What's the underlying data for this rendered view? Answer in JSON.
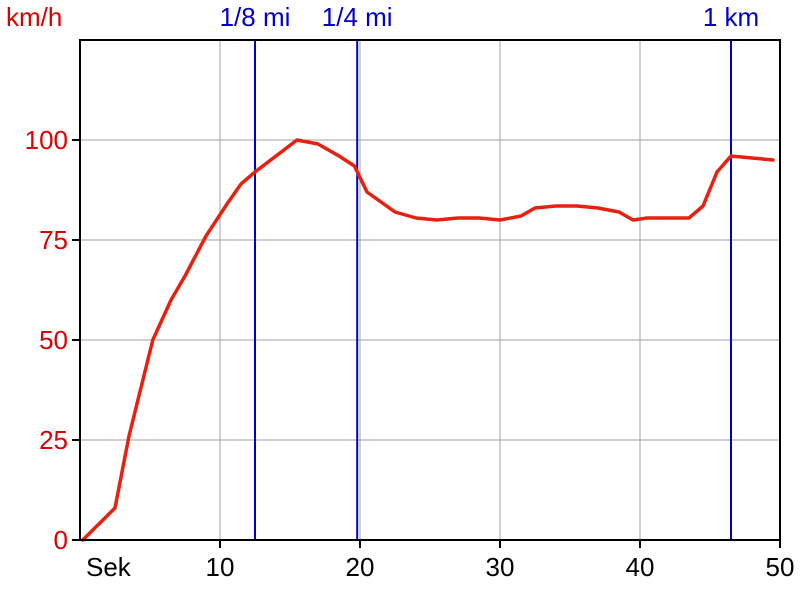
{
  "chart_data": {
    "type": "line",
    "title": "",
    "ylabel": "km/h",
    "xlabel": "Sek",
    "xlim": [
      0,
      50
    ],
    "ylim": [
      0,
      125
    ],
    "x_ticks": [
      10,
      20,
      30,
      40,
      50
    ],
    "y_ticks": [
      0,
      25,
      50,
      75,
      100
    ],
    "grid": true,
    "colors": {
      "series": "#e82010",
      "y_axis_text": "#dd0000",
      "x_axis_text": "#000000",
      "markers": "#0000cc",
      "grid": "#a0a0a0",
      "frame": "#000000"
    },
    "markers": [
      {
        "label": "1/8 mi",
        "x": 12.5
      },
      {
        "label": "1/4 mi",
        "x": 19.8
      },
      {
        "label": "1 km",
        "x": 46.5
      }
    ],
    "series": [
      {
        "x": [
          0.2,
          2.5,
          3.5,
          5.2,
          6.5,
          7.5,
          9.0,
          10.5,
          11.5,
          12.5,
          14.0,
          15.5,
          17.0,
          18.5,
          19.6,
          20.5,
          22.5,
          24.0,
          25.5,
          27.0,
          28.5,
          30.0,
          31.5,
          32.5,
          34.0,
          35.5,
          37.0,
          38.5,
          39.5,
          40.5,
          42.0,
          43.5,
          44.5,
          45.5,
          46.5,
          48.0,
          49.5
        ],
        "values": [
          0,
          8,
          26,
          50,
          60,
          66,
          76,
          84,
          89,
          92,
          96,
          100,
          99,
          96,
          93.5,
          87,
          82,
          80.5,
          80,
          80.5,
          80.5,
          80,
          81,
          83,
          83.5,
          83.5,
          83,
          82,
          80,
          80.5,
          80.5,
          80.5,
          83.5,
          92,
          96,
          95.5,
          95
        ]
      }
    ]
  }
}
